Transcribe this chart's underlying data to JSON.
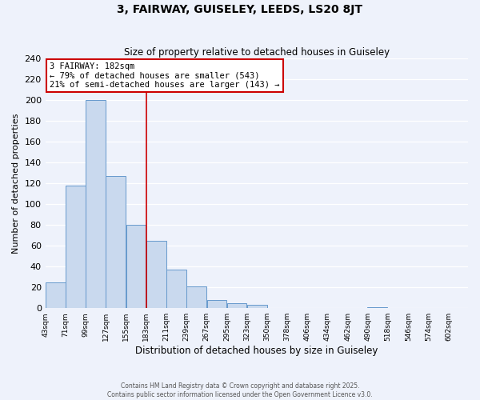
{
  "title": "3, FAIRWAY, GUISELEY, LEEDS, LS20 8JT",
  "subtitle": "Size of property relative to detached houses in Guiseley",
  "xlabel": "Distribution of detached houses by size in Guiseley",
  "ylabel": "Number of detached properties",
  "bar_left_edges": [
    43,
    71,
    99,
    127,
    155,
    183,
    211,
    239,
    267,
    295,
    323,
    350,
    378,
    406,
    434,
    462,
    490,
    518,
    546,
    574
  ],
  "bar_heights": [
    25,
    118,
    200,
    127,
    80,
    65,
    37,
    21,
    8,
    5,
    3,
    0,
    0,
    0,
    0,
    0,
    1,
    0,
    0,
    0
  ],
  "bin_width": 28,
  "bar_color": "#c9d9ee",
  "bar_edge_color": "#6699cc",
  "tick_labels": [
    "43sqm",
    "71sqm",
    "99sqm",
    "127sqm",
    "155sqm",
    "183sqm",
    "211sqm",
    "239sqm",
    "267sqm",
    "295sqm",
    "323sqm",
    "350sqm",
    "378sqm",
    "406sqm",
    "434sqm",
    "462sqm",
    "490sqm",
    "518sqm",
    "546sqm",
    "574sqm",
    "602sqm"
  ],
  "ylim": [
    0,
    240
  ],
  "yticks": [
    0,
    20,
    40,
    60,
    80,
    100,
    120,
    140,
    160,
    180,
    200,
    220,
    240
  ],
  "vline_x": 183,
  "vline_color": "#cc0000",
  "annotation_title": "3 FAIRWAY: 182sqm",
  "annotation_line1": "← 79% of detached houses are smaller (543)",
  "annotation_line2": "21% of semi-detached houses are larger (143) →",
  "annotation_box_color": "#ffffff",
  "annotation_box_edge_color": "#cc0000",
  "background_color": "#eef2fb",
  "grid_color": "#ffffff",
  "footer_line1": "Contains HM Land Registry data © Crown copyright and database right 2025.",
  "footer_line2": "Contains public sector information licensed under the Open Government Licence v3.0."
}
